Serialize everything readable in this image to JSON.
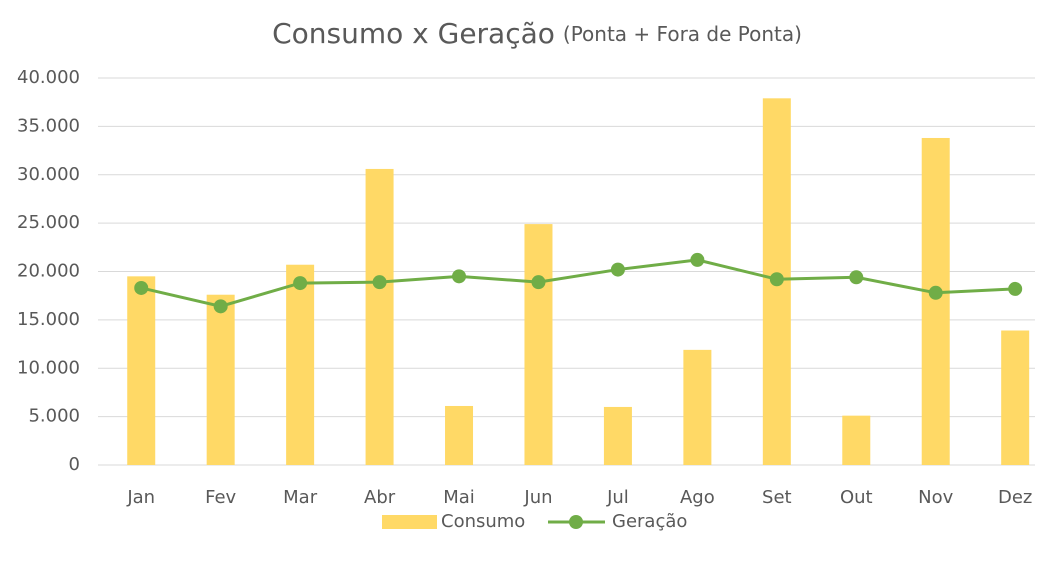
{
  "chart_data": {
    "type": "bar-line",
    "title": "Consumo x Geração",
    "subtitle": "(Ponta + Fora de Ponta)",
    "categories": [
      "Jan",
      "Fev",
      "Mar",
      "Abr",
      "Mai",
      "Jun",
      "Jul",
      "Ago",
      "Set",
      "Out",
      "Nov",
      "Dez"
    ],
    "series": [
      {
        "name": "Consumo",
        "type": "bar",
        "color": "#ffd966",
        "values": [
          19500,
          17600,
          20700,
          30600,
          6100,
          24900,
          6000,
          11900,
          37900,
          5100,
          33800,
          13900
        ]
      },
      {
        "name": "Geração",
        "type": "line",
        "color": "#70ad47",
        "values": [
          18300,
          16400,
          18800,
          18900,
          19500,
          18900,
          20200,
          21200,
          19200,
          19400,
          17800,
          18200
        ]
      }
    ],
    "ylim": [
      0,
      40000
    ],
    "yticks": [
      0,
      {
        "value": 5000,
        "label": "5.000"
      },
      {
        "value": 10000,
        "label": "10.000"
      },
      {
        "value": 15000,
        "label": "15.000"
      },
      {
        "value": 20000,
        "label": "20.000"
      },
      {
        "value": 25000,
        "label": "25.000"
      },
      {
        "value": 30000,
        "label": "30.000"
      },
      {
        "value": 35000,
        "label": "35.000"
      },
      {
        "value": 40000,
        "label": "40.000"
      }
    ],
    "grid": true,
    "legend": "bottom"
  }
}
